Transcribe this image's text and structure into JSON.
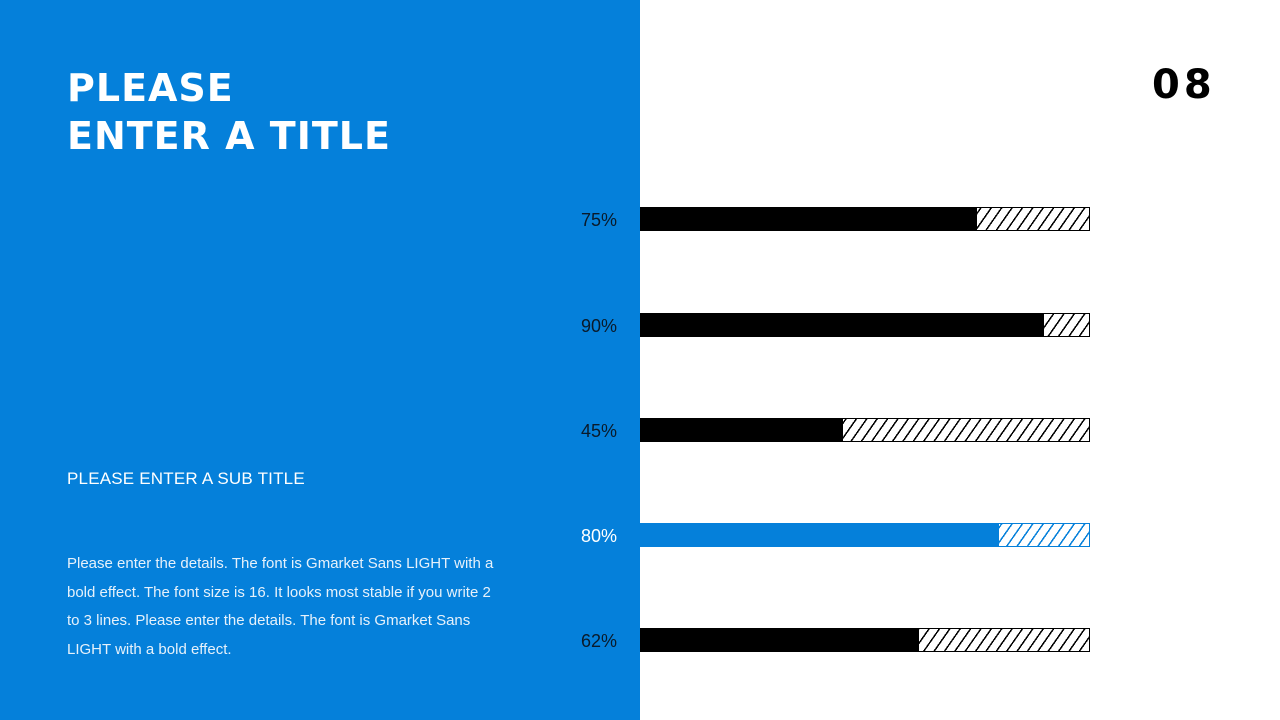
{
  "slide": {
    "title_lines": [
      "PLEASE",
      "ENTER A TITLE"
    ],
    "subtitle": "PLEASE ENTER A SUB TITLE",
    "body": "Please enter the details. The font is Gmarket Sans LIGHT with a bold effect. The font size is 16. It looks most stable if you write 2 to 3 lines. Please enter the details. The font is Gmarket Sans LIGHT with a bold effect.",
    "page_number": "08"
  },
  "colors": {
    "accent": "#0580da",
    "bar_default": "#000000",
    "background": "#ffffff"
  },
  "chart_data": {
    "type": "bar",
    "orientation": "horizontal",
    "title": "",
    "xlabel": "",
    "ylabel": "",
    "xlim": [
      0,
      100
    ],
    "grid": false,
    "categories": [
      "75%",
      "90%",
      "45%",
      "80%",
      "62%"
    ],
    "values": [
      75,
      90,
      45,
      80,
      62
    ],
    "highlight_index": 3,
    "remainder_style": "hatched"
  },
  "bars": [
    {
      "label": "75%",
      "value": 75,
      "color": "#000000",
      "label_color": "#0a1a2a"
    },
    {
      "label": "90%",
      "value": 90,
      "color": "#000000",
      "label_color": "#0a1a2a"
    },
    {
      "label": "45%",
      "value": 45,
      "color": "#000000",
      "label_color": "#0a1a2a"
    },
    {
      "label": "80%",
      "value": 80,
      "color": "#0580da",
      "label_color": "#ffffff"
    },
    {
      "label": "62%",
      "value": 62,
      "color": "#000000",
      "label_color": "#0a1a2a"
    }
  ]
}
